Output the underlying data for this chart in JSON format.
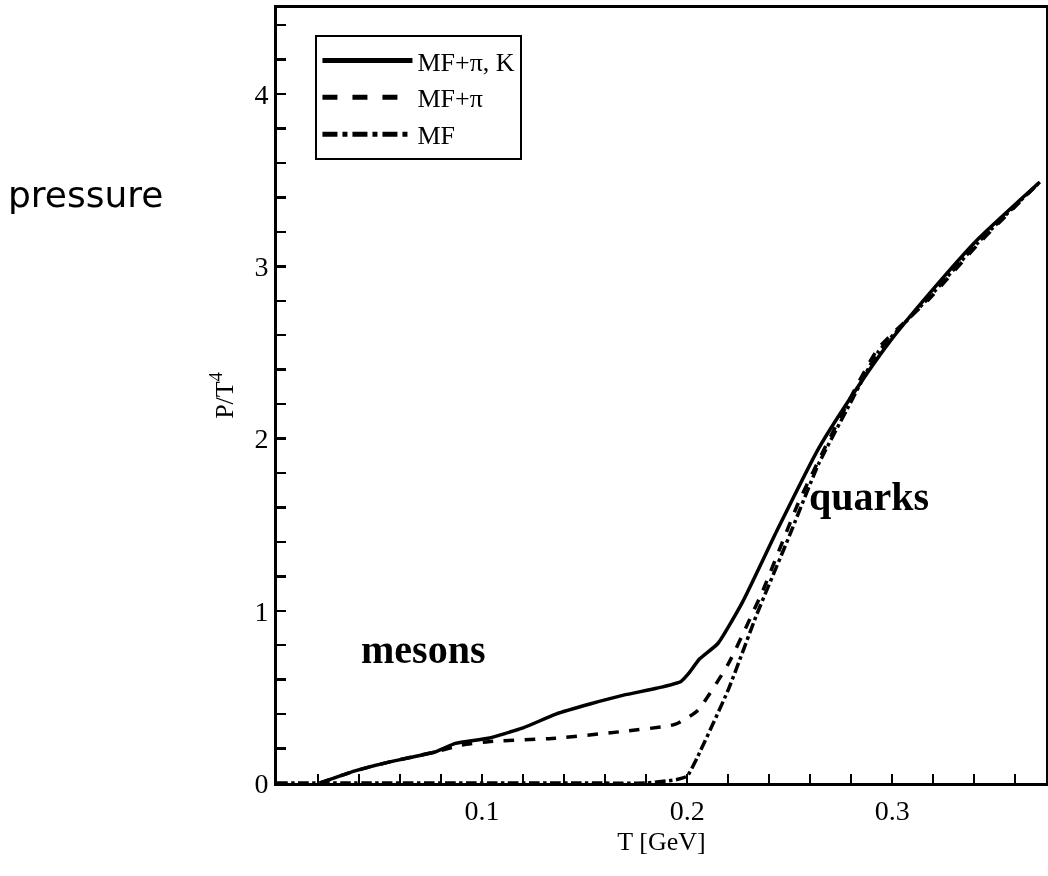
{
  "chart_data": {
    "type": "line",
    "xlabel": "T [GeV]",
    "ylabel": "P/T$^{4}$",
    "xlim": [
      0,
      0.375
    ],
    "ylim": [
      0,
      4.5
    ],
    "xticks": [
      {
        "value": 0.02,
        "label": null
      },
      {
        "value": 0.04,
        "label": null
      },
      {
        "value": 0.06,
        "label": null
      },
      {
        "value": 0.08,
        "label": null
      },
      0.1,
      {
        "value": 0.12,
        "label": null
      },
      {
        "value": 0.14,
        "label": null
      },
      {
        "value": 0.16,
        "label": null
      },
      {
        "value": 0.18,
        "label": null
      },
      0.2,
      {
        "value": 0.22,
        "label": null
      },
      {
        "value": 0.24,
        "label": null
      },
      {
        "value": 0.26,
        "label": null
      },
      {
        "value": 0.28,
        "label": null
      },
      0.3,
      {
        "value": 0.32,
        "label": null
      },
      {
        "value": 0.34,
        "label": null
      },
      {
        "value": 0.36,
        "label": null
      }
    ],
    "yticks": [
      0,
      {
        "value": 0.2,
        "label": null
      },
      {
        "value": 0.4,
        "label": null
      },
      {
        "value": 0.6,
        "label": null
      },
      {
        "value": 0.8,
        "label": null
      },
      1,
      {
        "value": 1.2,
        "label": null
      },
      {
        "value": 1.4,
        "label": null
      },
      {
        "value": 1.6,
        "label": null
      },
      {
        "value": 1.8,
        "label": null
      },
      2,
      {
        "value": 2.2,
        "label": null
      },
      {
        "value": 2.4,
        "label": null
      },
      {
        "value": 2.6,
        "label": null
      },
      {
        "value": 2.8,
        "label": null
      },
      3,
      {
        "value": 3.2,
        "label": null
      },
      {
        "value": 3.4,
        "label": null
      },
      {
        "value": 3.6,
        "label": null
      },
      {
        "value": 3.8,
        "label": null
      },
      4,
      {
        "value": 4.2,
        "label": null
      },
      {
        "value": 4.4,
        "label": null
      }
    ],
    "grid": false,
    "legend": "top left",
    "marker": "none",
    "annotations": [
      "pressure",
      "mesons",
      "quarks"
    ],
    "series": [
      {
        "name": "MF+π, K",
        "color": "#000000",
        "line_style": "solid",
        "x": [
          0.021,
          0.038,
          0.054,
          0.077,
          0.087,
          0.103,
          0.12,
          0.136,
          0.153,
          0.169,
          0.185,
          0.197,
          0.201,
          0.206,
          0.215,
          0.227,
          0.244,
          0.264,
          0.281,
          0.298,
          0.318,
          0.342,
          0.372
        ],
        "values": [
          0,
          0.07,
          0.12,
          0.18,
          0.23,
          0.26,
          0.32,
          0.4,
          0.46,
          0.51,
          0.55,
          0.59,
          0.64,
          0.72,
          0.81,
          1.05,
          1.47,
          1.94,
          2.26,
          2.55,
          2.84,
          3.16,
          3.49
        ]
      },
      {
        "name": "MF+π",
        "color": "#000000",
        "line_style": "dashed",
        "x": [
          0.021,
          0.038,
          0.054,
          0.077,
          0.09,
          0.103,
          0.136,
          0.169,
          0.194,
          0.205,
          0.22,
          0.237,
          0.254,
          0.269,
          0.293,
          0.318,
          0.342,
          0.372
        ],
        "values": [
          0,
          0.07,
          0.12,
          0.18,
          0.22,
          0.24,
          0.26,
          0.3,
          0.34,
          0.42,
          0.69,
          1.12,
          1.62,
          1.99,
          2.52,
          2.81,
          3.13,
          3.49
        ]
      },
      {
        "name": "MF",
        "color": "#000000",
        "line_style": "dashdot",
        "x": [
          0,
          0.05,
          0.1,
          0.15,
          0.18,
          0.195,
          0.2,
          0.205,
          0.22,
          0.234,
          0.249,
          0.264,
          0.278,
          0.293,
          0.318,
          0.342,
          0.372
        ],
        "values": [
          0,
          0,
          0,
          0,
          0,
          0.02,
          0.04,
          0.15,
          0.54,
          0.98,
          1.41,
          1.85,
          2.17,
          2.5,
          2.82,
          3.14,
          3.49
        ]
      }
    ]
  }
}
